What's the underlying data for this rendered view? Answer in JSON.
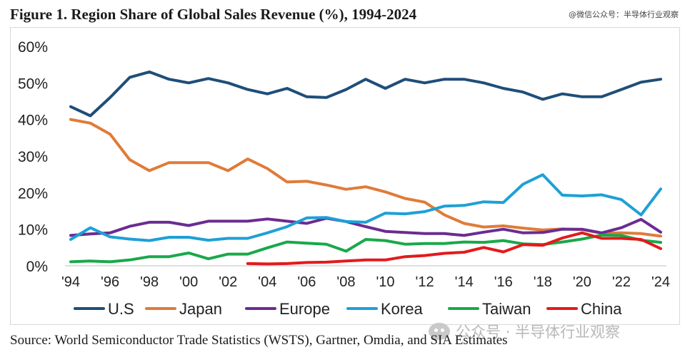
{
  "header": {
    "title": "Figure 1. Region Share of Global Sales Revenue (%), 1994-2024",
    "watermark_top": "@微信公众号：半导体行业观察"
  },
  "footer": {
    "source": "Source: World Semiconductor Trade Statistics (WSTS), Gartner, Omdia, and SIA Estimates",
    "watermark_bottom": "公众号 · 半导体行业观察"
  },
  "chart_data": {
    "type": "line",
    "title": "Figure 1. Region Share of Global Sales Revenue (%), 1994-2024",
    "xlabel": "",
    "ylabel": "",
    "x": [
      1994,
      1995,
      1996,
      1997,
      1998,
      1999,
      2000,
      2001,
      2002,
      2003,
      2004,
      2005,
      2006,
      2007,
      2008,
      2009,
      2010,
      2011,
      2012,
      2013,
      2014,
      2015,
      2016,
      2017,
      2018,
      2019,
      2020,
      2021,
      2022,
      2023,
      2024
    ],
    "x_tick_values": [
      1994,
      1996,
      1998,
      2000,
      2002,
      2004,
      2006,
      2008,
      2010,
      2012,
      2014,
      2016,
      2018,
      2020,
      2022,
      2024
    ],
    "x_tick_labels": [
      "'94",
      "'96",
      "'98",
      "'00",
      "'02",
      "'04",
      "'06",
      "'08",
      "'10",
      "'12",
      "'14",
      "'16",
      "'18",
      "'20",
      "'22",
      "'24"
    ],
    "y_tick_values": [
      0,
      10,
      20,
      30,
      40,
      50,
      60
    ],
    "y_tick_labels": [
      "0%",
      "10%",
      "20%",
      "30%",
      "40%",
      "50%",
      "60%"
    ],
    "ylim": [
      0,
      60
    ],
    "grid": false,
    "legend_position": "bottom",
    "series": [
      {
        "name": "U.S",
        "color": "#1f4e79",
        "values": [
          43.5,
          41,
          46,
          51.5,
          53,
          51,
          50,
          51.2,
          50,
          48.2,
          47,
          48.5,
          46.2,
          46,
          48.2,
          51,
          48.5,
          51,
          50,
          51,
          51,
          50,
          48.5,
          47.5,
          45.5,
          47,
          46.2,
          46.2,
          48.2,
          50.2,
          51
        ]
      },
      {
        "name": "Japan",
        "color": "#e07b39",
        "values": [
          40,
          39,
          36,
          29,
          26,
          28.2,
          28.2,
          28.2,
          26,
          29.2,
          26.6,
          22.9,
          23.1,
          22.1,
          20.9,
          21.6,
          20.2,
          18.4,
          17.4,
          13.9,
          11.6,
          10.6,
          10.9,
          10.3,
          9.8,
          10.1,
          9.9,
          8.9,
          9.0,
          8.8,
          8.1
        ]
      },
      {
        "name": "Europe",
        "color": "#6a2c91",
        "values": [
          8.3,
          8.7,
          9.0,
          10.8,
          11.9,
          11.9,
          11.0,
          12.2,
          12.2,
          12.2,
          12.8,
          12.2,
          11.6,
          13.0,
          12.1,
          10.7,
          9.4,
          9.1,
          8.8,
          8.8,
          8.3,
          9.2,
          10.0,
          9.0,
          9.1,
          10.0,
          10.0,
          9.0,
          10.4,
          12.7,
          9.2
        ]
      },
      {
        "name": "Korea",
        "color": "#1ea0d6",
        "values": [
          7.2,
          10.4,
          7.9,
          7.3,
          6.9,
          7.8,
          7.8,
          7.0,
          7.5,
          7.5,
          9.0,
          10.7,
          13.1,
          13.2,
          12.1,
          11.9,
          14.4,
          14.2,
          14.8,
          16.3,
          16.5,
          17.5,
          17.3,
          22.3,
          24.9,
          19.3,
          19.1,
          19.4,
          18.1,
          13.9,
          21.0
        ]
      },
      {
        "name": "Taiwan",
        "color": "#1aa84a",
        "values": [
          1.1,
          1.3,
          1.1,
          1.6,
          2.5,
          2.5,
          3.5,
          1.9,
          3.2,
          3.2,
          4.9,
          6.5,
          6.2,
          5.9,
          4.0,
          7.2,
          6.9,
          5.9,
          6.1,
          6.1,
          6.5,
          6.4,
          6.9,
          6.0,
          5.8,
          6.5,
          7.3,
          8.4,
          8.3,
          7.0,
          6.4
        ]
      },
      {
        "name": "China",
        "color": "#e31a1c",
        "values": [
          null,
          null,
          null,
          null,
          null,
          null,
          null,
          null,
          null,
          0.6,
          0.5,
          0.6,
          0.9,
          1.0,
          1.3,
          1.6,
          1.6,
          2.5,
          2.8,
          3.4,
          3.7,
          5.0,
          3.8,
          5.8,
          5.6,
          7.6,
          9.0,
          7.5,
          7.5,
          7.2,
          4.7
        ]
      }
    ]
  }
}
